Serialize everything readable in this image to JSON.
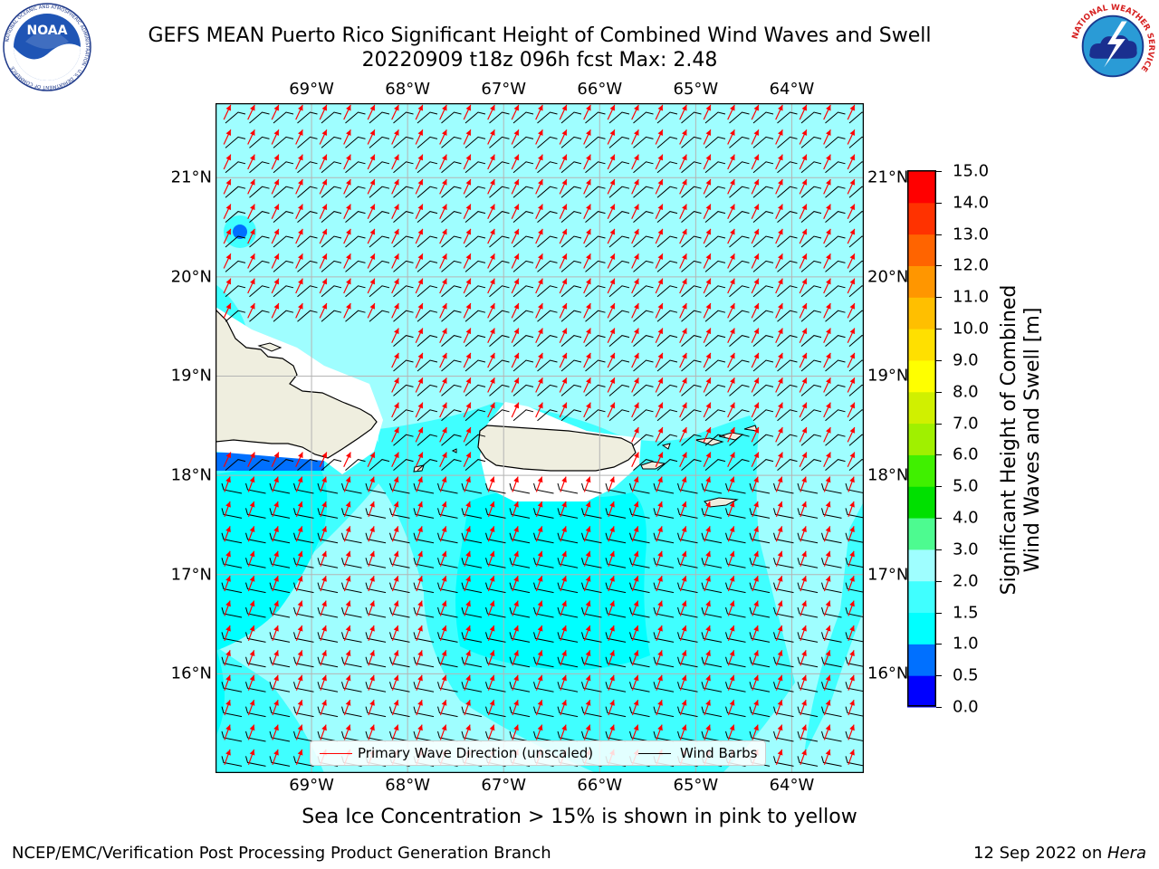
{
  "header": {
    "title_line1": "GEFS MEAN Puerto Rico Significant Height of Combined Wind Waves and Swell",
    "title_line2": "20220909 t18z 096h fcst   Max: 2.48"
  },
  "logos": {
    "left": {
      "name": "noaa-logo",
      "text": "NOAA",
      "ring_text": "NATIONAL OCEANIC AND ATMOSPHERIC ADMINISTRATION · U.S. DEPARTMENT OF COMMERCE"
    },
    "right": {
      "name": "nws-logo",
      "ring_text": "NATIONAL WEATHER SERVICE"
    }
  },
  "map": {
    "lon_labels": [
      "69°W",
      "68°W",
      "67°W",
      "66°W",
      "65°W",
      "64°W"
    ],
    "lon_values": [
      -69,
      -68,
      -67,
      -66,
      -65,
      -64
    ],
    "lat_labels": [
      "21°N",
      "20°N",
      "19°N",
      "18°N",
      "17°N",
      "16°N"
    ],
    "lat_values": [
      21,
      20,
      19,
      18,
      17,
      16
    ],
    "lon_range": [
      -70.0,
      -63.25
    ],
    "lat_range": [
      15.0,
      21.75
    ],
    "grid": true,
    "ocean_base_color": "#9ffeff",
    "land_color": "#efeedf",
    "wave_arrow_color": "#ff0000",
    "wind_barb_color": "#000000"
  },
  "legend": {
    "items": [
      {
        "label": "Primary Wave Direction (unscaled)",
        "color": "#ff0000"
      },
      {
        "label": "Wind Barbs",
        "color": "#000000"
      }
    ]
  },
  "colorbar": {
    "label_line1": "Significant Height of Combined",
    "label_line2": "Wind Waves and Swell [m]",
    "ticks": [
      "0.0",
      "0.5",
      "1.0",
      "1.5",
      "2.0",
      "3.0",
      "4.0",
      "5.0",
      "6.0",
      "7.0",
      "8.0",
      "9.0",
      "10.0",
      "11.0",
      "12.0",
      "13.0",
      "14.0",
      "15.0"
    ],
    "colors": [
      "#0000ff",
      "#0070ff",
      "#00ffff",
      "#40ffff",
      "#9ffeff",
      "#4dfb90",
      "#00e000",
      "#40f000",
      "#a0f000",
      "#d0f000",
      "#ffff00",
      "#ffe000",
      "#ffbf00",
      "#ff9600",
      "#ff6400",
      "#ff3200",
      "#ff0000"
    ]
  },
  "footer": {
    "note": "Sea Ice Concentration > 15% is shown in pink to yellow",
    "left": "NCEP/EMC/Verification Post Processing Product Generation Branch",
    "right_date": "12 Sep 2022 on ",
    "right_host": "Hera"
  }
}
